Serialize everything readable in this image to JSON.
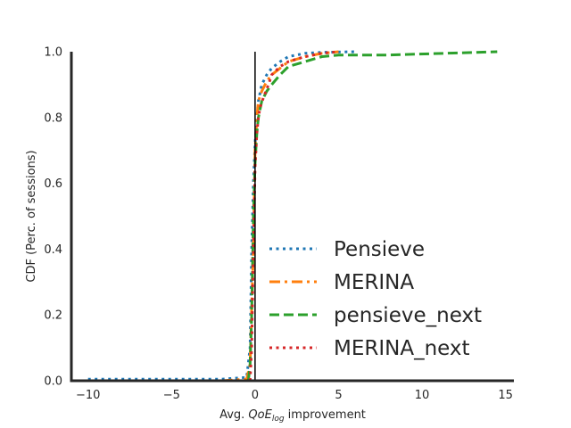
{
  "chart_data": {
    "type": "line",
    "title": "",
    "xlabel_prefix": "Avg. ",
    "xlabel_math": "QoE",
    "xlabel_sub": "log",
    "xlabel_suffix": " improvement",
    "ylabel": "CDF (Perc. of sessions)",
    "xlim": [
      -11,
      15.5
    ],
    "ylim": [
      0,
      1.0
    ],
    "xticks": [
      -10,
      -5,
      0,
      5,
      10,
      15
    ],
    "xtick_labels": [
      "−10",
      "−5",
      "0",
      "5",
      "10",
      "15"
    ],
    "yticks": [
      0.0,
      0.2,
      0.4,
      0.6,
      0.8,
      1.0
    ],
    "ytick_labels": [
      "0.0",
      "0.2",
      "0.4",
      "0.6",
      "0.8",
      "1.0"
    ],
    "vline_x": 0,
    "grid": false,
    "legend_position": "lower-right",
    "series": [
      {
        "name": "Pensieve",
        "color": "#1f77b4",
        "style": "dotted",
        "x": [
          -10,
          -5,
          -2,
          -0.5,
          -0.3,
          -0.2,
          -0.1,
          0,
          0.1,
          0.2,
          0.4,
          0.7,
          1.0,
          1.5,
          2.0,
          3.0,
          4.0,
          6.0
        ],
        "y": [
          0.005,
          0.005,
          0.005,
          0.01,
          0.1,
          0.4,
          0.6,
          0.72,
          0.8,
          0.85,
          0.9,
          0.93,
          0.95,
          0.97,
          0.985,
          0.995,
          0.998,
          1.0
        ]
      },
      {
        "name": "MERINA",
        "color": "#ff7f0e",
        "style": "dashdot",
        "x": [
          -2.0,
          -0.5,
          -0.3,
          -0.1,
          0,
          0.1,
          0.2,
          0.4,
          0.7,
          1.0,
          1.5,
          2.0,
          3.0,
          4.0,
          5.0
        ],
        "y": [
          0.0,
          0.005,
          0.05,
          0.4,
          0.7,
          0.8,
          0.85,
          0.88,
          0.91,
          0.93,
          0.95,
          0.97,
          0.985,
          0.995,
          1.0
        ]
      },
      {
        "name": "pensieve_next",
        "color": "#2ca02c",
        "style": "dashed",
        "x": [
          -0.4,
          -0.3,
          -0.2,
          -0.1,
          0,
          0.1,
          0.2,
          0.4,
          0.7,
          1.0,
          1.5,
          2.0,
          3.0,
          4.0,
          5.0,
          8.0,
          14.5
        ],
        "y": [
          0.0,
          0.05,
          0.2,
          0.5,
          0.66,
          0.75,
          0.8,
          0.85,
          0.88,
          0.9,
          0.93,
          0.955,
          0.97,
          0.985,
          0.99,
          0.99,
          1.0
        ]
      },
      {
        "name": "MERINA_next",
        "color": "#d62728",
        "style": "dotted",
        "x": [
          -0.3,
          -0.2,
          -0.1,
          0,
          0.1,
          0.2,
          0.3,
          0.5,
          0.8,
          1.0,
          1.5,
          2.0,
          3.0,
          4.0,
          5.0
        ],
        "y": [
          0.0,
          0.1,
          0.4,
          0.65,
          0.75,
          0.8,
          0.83,
          0.86,
          0.9,
          0.93,
          0.955,
          0.97,
          0.985,
          0.995,
          1.0
        ]
      }
    ]
  }
}
